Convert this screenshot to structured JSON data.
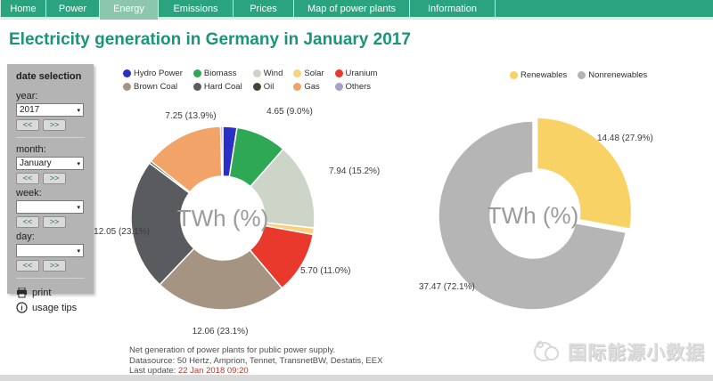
{
  "navbar": {
    "items": [
      {
        "label": "Home",
        "active": false
      },
      {
        "label": "Power",
        "active": false
      },
      {
        "label": "Energy",
        "active": true
      },
      {
        "label": "Emissions",
        "active": false
      },
      {
        "label": "Prices",
        "active": false
      },
      {
        "label": "Map of power plants",
        "active": false
      },
      {
        "label": "Information",
        "active": false
      }
    ]
  },
  "page_title": "Electricity generation in Germany in January 2017",
  "sidebar": {
    "title": "date selection",
    "fields": [
      {
        "label": "year:",
        "value": "2017"
      },
      {
        "label": "month:",
        "value": "January"
      },
      {
        "label": "week:",
        "value": ""
      },
      {
        "label": "day:",
        "value": ""
      }
    ],
    "prev_label": "<<",
    "next_label": ">>",
    "print_label": "print",
    "usage_tips_label": "usage tips"
  },
  "footer": {
    "line1": "Net generation of power plants for public power supply.",
    "line2": "Datasource: 50 Hertz, Amprion, Tennet, TransnetBW, Destatis, EEX",
    "last_update_label": "Last update:",
    "last_update_value": " 22 Jan 2018 09:20"
  },
  "watermark": "国际能源小数据",
  "chart_data": [
    {
      "type": "pie",
      "donut": true,
      "name": "electricity-generation-by-source",
      "unit": "TWh",
      "center_label": "TWh (%)",
      "legend_rows": 2,
      "note": "values of unlabeled small slices (Hydro Power, Solar, Oil, Others) estimated from slice geometry and renewables/nonrenewables totals",
      "series": [
        {
          "name": "Hydro Power",
          "value": 1.29,
          "color": "#2a2fc6",
          "label": null
        },
        {
          "name": "Biomass",
          "value": 4.65,
          "color": "#2ea855",
          "label": "4.65 (9.0%)",
          "label_xy": [
            75,
            -120
          ],
          "label_anchor": "middle"
        },
        {
          "name": "Wind",
          "value": 7.94,
          "color": "#ccd5c8",
          "label": "7.94 (15.2%)",
          "label_xy": [
            119,
            -53
          ],
          "label_anchor": "start"
        },
        {
          "name": "Solar",
          "value": 0.6,
          "color": "#f8d27c",
          "label": null
        },
        {
          "name": "Uranium",
          "value": 5.7,
          "color": "#e8392c",
          "label": "5.70 (11.0%)",
          "label_xy": [
            87,
            59
          ],
          "label_anchor": "start"
        },
        {
          "name": "Brown Coal",
          "value": 12.06,
          "color": "#a69483",
          "label": "12.06 (23.1%)",
          "label_xy": [
            -3,
            127
          ],
          "label_anchor": "middle"
        },
        {
          "name": "Hard Coal",
          "value": 12.05,
          "color": "#595b5e",
          "label": "12.05 (23.1%)",
          "label_xy": [
            -82,
            15
          ],
          "label_anchor": "end"
        },
        {
          "name": "Oil",
          "value": 0.21,
          "color": "#4a4238",
          "label": null
        },
        {
          "name": "Gas",
          "value": 7.25,
          "color": "#f2a468",
          "label": "7.25 (13.9%)",
          "label_xy": [
            -36,
            -115
          ],
          "label_anchor": "middle"
        },
        {
          "name": "Others",
          "value": 0.2,
          "color": "#a8a0c8",
          "label": null
        }
      ]
    },
    {
      "type": "pie",
      "donut": true,
      "name": "renewables-vs-nonrenewables",
      "unit": "TWh",
      "center_label": "TWh (%)",
      "legend_rows": 1,
      "series": [
        {
          "name": "Renewables",
          "value": 14.48,
          "color": "#f9d266",
          "label": "14.48 (27.9%)",
          "label_xy": [
            72,
            -87
          ],
          "label_anchor": "start",
          "explode": 6
        },
        {
          "name": "Nonrenewables",
          "value": 37.47,
          "color": "#b5b5b5",
          "label": "37.47 (72.1%)",
          "label_xy": [
            -128,
            80
          ],
          "label_anchor": "start"
        }
      ]
    }
  ]
}
